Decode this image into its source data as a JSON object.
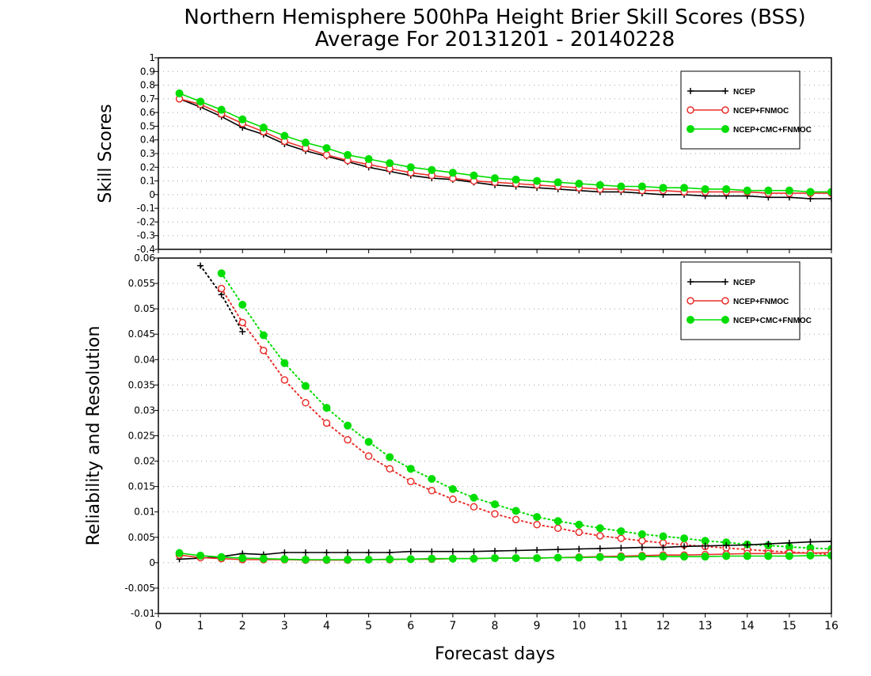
{
  "title": {
    "line1": "Northern Hemisphere 500hPa Height Brier Skill Scores (BSS)",
    "line2": "Average For 20131201 - 20140228"
  },
  "xlabel": "Forecast days",
  "colors": {
    "NCEP": "#000000",
    "NCEP+FNMOC": "#e8302c",
    "NCEP+CMC+FNMOC": "#00dd00"
  },
  "chart_data": [
    {
      "type": "line",
      "ylabel": "Skill Scores",
      "ylim": [
        -0.4,
        1.0
      ],
      "yticks": [
        "1",
        "0.9",
        "0.8",
        "0.7",
        "0.6",
        "0.5",
        "0.4",
        "0.3",
        "0.2",
        "0.1",
        "0",
        "-0.1",
        "-0.2",
        "-0.3",
        "-0.4"
      ],
      "xlim": [
        0,
        16
      ],
      "xticks": [
        "0",
        "1",
        "2",
        "3",
        "4",
        "5",
        "6",
        "7",
        "8",
        "9",
        "10",
        "11",
        "12",
        "13",
        "14",
        "15",
        "16"
      ],
      "grid": true,
      "legend_position": "top-right",
      "legend": [
        "NCEP",
        "NCEP+FNMOC",
        "NCEP+CMC+FNMOC"
      ],
      "x": [
        0.5,
        1,
        1.5,
        2,
        2.5,
        3,
        3.5,
        4,
        4.5,
        5,
        5.5,
        6,
        6.5,
        7,
        7.5,
        8,
        8.5,
        9,
        9.5,
        10,
        10.5,
        11,
        11.5,
        12,
        12.5,
        13,
        13.5,
        14,
        14.5,
        15,
        15.5,
        16
      ],
      "series": [
        {
          "name": "NCEP",
          "marker": "plus",
          "values": [
            0.7,
            0.64,
            0.57,
            0.49,
            0.44,
            0.37,
            0.32,
            0.28,
            0.24,
            0.2,
            0.17,
            0.14,
            0.12,
            0.11,
            0.09,
            0.07,
            0.06,
            0.05,
            0.04,
            0.03,
            0.02,
            0.02,
            0.01,
            0.0,
            0.0,
            -0.01,
            -0.01,
            -0.01,
            -0.02,
            -0.02,
            -0.03,
            -0.03
          ]
        },
        {
          "name": "NCEP+FNMOC",
          "marker": "open-circle",
          "values": [
            0.7,
            0.66,
            0.59,
            0.52,
            0.46,
            0.39,
            0.34,
            0.29,
            0.25,
            0.22,
            0.19,
            0.16,
            0.14,
            0.12,
            0.1,
            0.09,
            0.08,
            0.07,
            0.06,
            0.05,
            0.04,
            0.04,
            0.03,
            0.03,
            0.02,
            0.02,
            0.02,
            0.02,
            0.01,
            0.01,
            0.01,
            0.01
          ]
        },
        {
          "name": "NCEP+CMC+FNMOC",
          "marker": "filled-circle",
          "values": [
            0.74,
            0.68,
            0.62,
            0.55,
            0.49,
            0.43,
            0.38,
            0.34,
            0.29,
            0.26,
            0.23,
            0.2,
            0.18,
            0.16,
            0.14,
            0.12,
            0.11,
            0.1,
            0.09,
            0.08,
            0.07,
            0.06,
            0.06,
            0.05,
            0.05,
            0.04,
            0.04,
            0.03,
            0.03,
            0.03,
            0.02,
            0.02
          ]
        }
      ]
    },
    {
      "type": "line",
      "ylabel": "Reliability and Resolution",
      "ylim": [
        -0.01,
        0.06
      ],
      "yticks": [
        "0.06",
        "0.055",
        "0.05",
        "0.045",
        "0.04",
        "0.035",
        "0.03",
        "0.025",
        "0.02",
        "0.015",
        "0.01",
        "0.005",
        "0",
        "-0.005",
        "-0.01"
      ],
      "xlim": [
        0,
        16
      ],
      "xticks": [
        "0",
        "1",
        "2",
        "3",
        "4",
        "5",
        "6",
        "7",
        "8",
        "9",
        "10",
        "11",
        "12",
        "13",
        "14",
        "15",
        "16"
      ],
      "grid": true,
      "legend_position": "top-right",
      "legend": [
        "NCEP",
        "NCEP+FNMOC",
        "NCEP+CMC+FNMOC"
      ],
      "x": [
        0.5,
        1,
        1.5,
        2,
        2.5,
        3,
        3.5,
        4,
        4.5,
        5,
        5.5,
        6,
        6.5,
        7,
        7.5,
        8,
        8.5,
        9,
        9.5,
        10,
        10.5,
        11,
        11.5,
        12,
        12.5,
        13,
        13.5,
        14,
        14.5,
        15,
        15.5,
        16
      ],
      "series": [
        {
          "name": "NCEP",
          "kind": "resolution",
          "marker": "plus",
          "values": [
            null,
            0.0585,
            0.0528,
            0.0455,
            null,
            null,
            null,
            null,
            null,
            null,
            null,
            null,
            null,
            null,
            null,
            null,
            null,
            null,
            null,
            null,
            null,
            null,
            null,
            null,
            null,
            null,
            null,
            null,
            null,
            null,
            null,
            null
          ]
        },
        {
          "name": "NCEP+FNMOC",
          "kind": "resolution",
          "marker": "open-circle",
          "values": [
            null,
            null,
            0.054,
            0.0473,
            0.0418,
            0.036,
            0.0315,
            0.0275,
            0.0242,
            0.021,
            0.0185,
            0.016,
            0.0142,
            0.0125,
            0.011,
            0.0096,
            0.0085,
            0.0075,
            0.0068,
            0.006,
            0.0053,
            0.0048,
            0.0043,
            0.0039,
            0.0035,
            0.0032,
            0.0029,
            0.0026,
            0.0023,
            0.0021,
            0.0019,
            0.0016
          ]
        },
        {
          "name": "NCEP+CMC+FNMOC",
          "kind": "resolution",
          "marker": "filled-circle",
          "values": [
            null,
            null,
            0.057,
            0.0508,
            0.0448,
            0.0393,
            0.0348,
            0.0305,
            0.027,
            0.0238,
            0.0208,
            0.0185,
            0.0165,
            0.0145,
            0.0128,
            0.0115,
            0.0102,
            0.009,
            0.0082,
            0.0075,
            0.0068,
            0.0062,
            0.0056,
            0.0052,
            0.0048,
            0.0043,
            0.004,
            0.0036,
            0.0034,
            0.0031,
            0.0029,
            0.0027
          ]
        },
        {
          "name": "NCEP",
          "kind": "reliability",
          "marker": "plus",
          "values": [
            0.0007,
            0.0009,
            0.0012,
            0.0018,
            0.0016,
            0.002,
            0.002,
            0.002,
            0.002,
            0.002,
            0.002,
            0.0022,
            0.0022,
            0.0022,
            0.0022,
            0.0023,
            0.0024,
            0.0025,
            0.0026,
            0.0027,
            0.0028,
            0.0029,
            0.003,
            0.003,
            0.0032,
            0.0033,
            0.0034,
            0.0035,
            0.0037,
            0.0039,
            0.0041,
            0.0042
          ]
        },
        {
          "name": "NCEP+FNMOC",
          "kind": "reliability",
          "marker": "open-circle",
          "values": [
            0.0015,
            0.001,
            0.0008,
            0.0006,
            0.0006,
            0.0006,
            0.0005,
            0.0005,
            0.0005,
            0.0006,
            0.0006,
            0.0007,
            0.0007,
            0.0008,
            0.0008,
            0.0009,
            0.0009,
            0.0009,
            0.001,
            0.0011,
            0.0012,
            0.0013,
            0.0014,
            0.0015,
            0.0015,
            0.0016,
            0.0017,
            0.0018,
            0.0018,
            0.0019,
            0.0019,
            0.002
          ]
        },
        {
          "name": "NCEP+CMC+FNMOC",
          "kind": "reliability",
          "marker": "filled-circle",
          "values": [
            0.0019,
            0.0014,
            0.0011,
            0.0009,
            0.0008,
            0.0007,
            0.0006,
            0.0006,
            0.0006,
            0.0006,
            0.0007,
            0.0007,
            0.0008,
            0.0008,
            0.0008,
            0.0009,
            0.0009,
            0.0009,
            0.001,
            0.001,
            0.0011,
            0.0011,
            0.0012,
            0.0012,
            0.0012,
            0.0012,
            0.0013,
            0.0013,
            0.0013,
            0.0013,
            0.0014,
            0.0014
          ]
        }
      ]
    }
  ]
}
